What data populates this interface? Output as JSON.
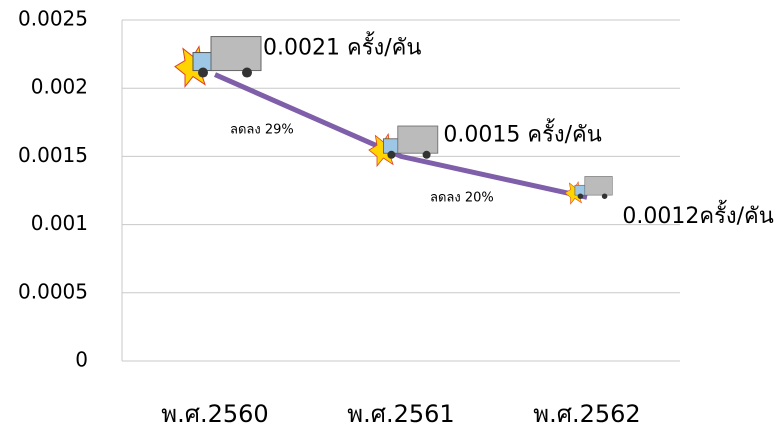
{
  "chart_data": {
    "type": "line",
    "categories": [
      "พ.ศ.2560",
      "พ.ศ.2561",
      "พ.ศ.2562"
    ],
    "series": [
      {
        "color": "#7f5fa9",
        "values": [
          0.0021,
          0.0015,
          0.0012
        ],
        "value_labels": [
          "0.0021 ครั้ง/คัน",
          "0.0015 ครั้ง/คัน",
          "0.0012ครั้ง/คัน"
        ]
      }
    ],
    "annotations": [
      "ลดลง 29%",
      "ลดลง 20%"
    ],
    "ylim": [
      0,
      0.0025
    ],
    "yticks": [
      0,
      0.0005,
      0.001,
      0.0015,
      0.002,
      0.0025
    ],
    "grid": true
  }
}
